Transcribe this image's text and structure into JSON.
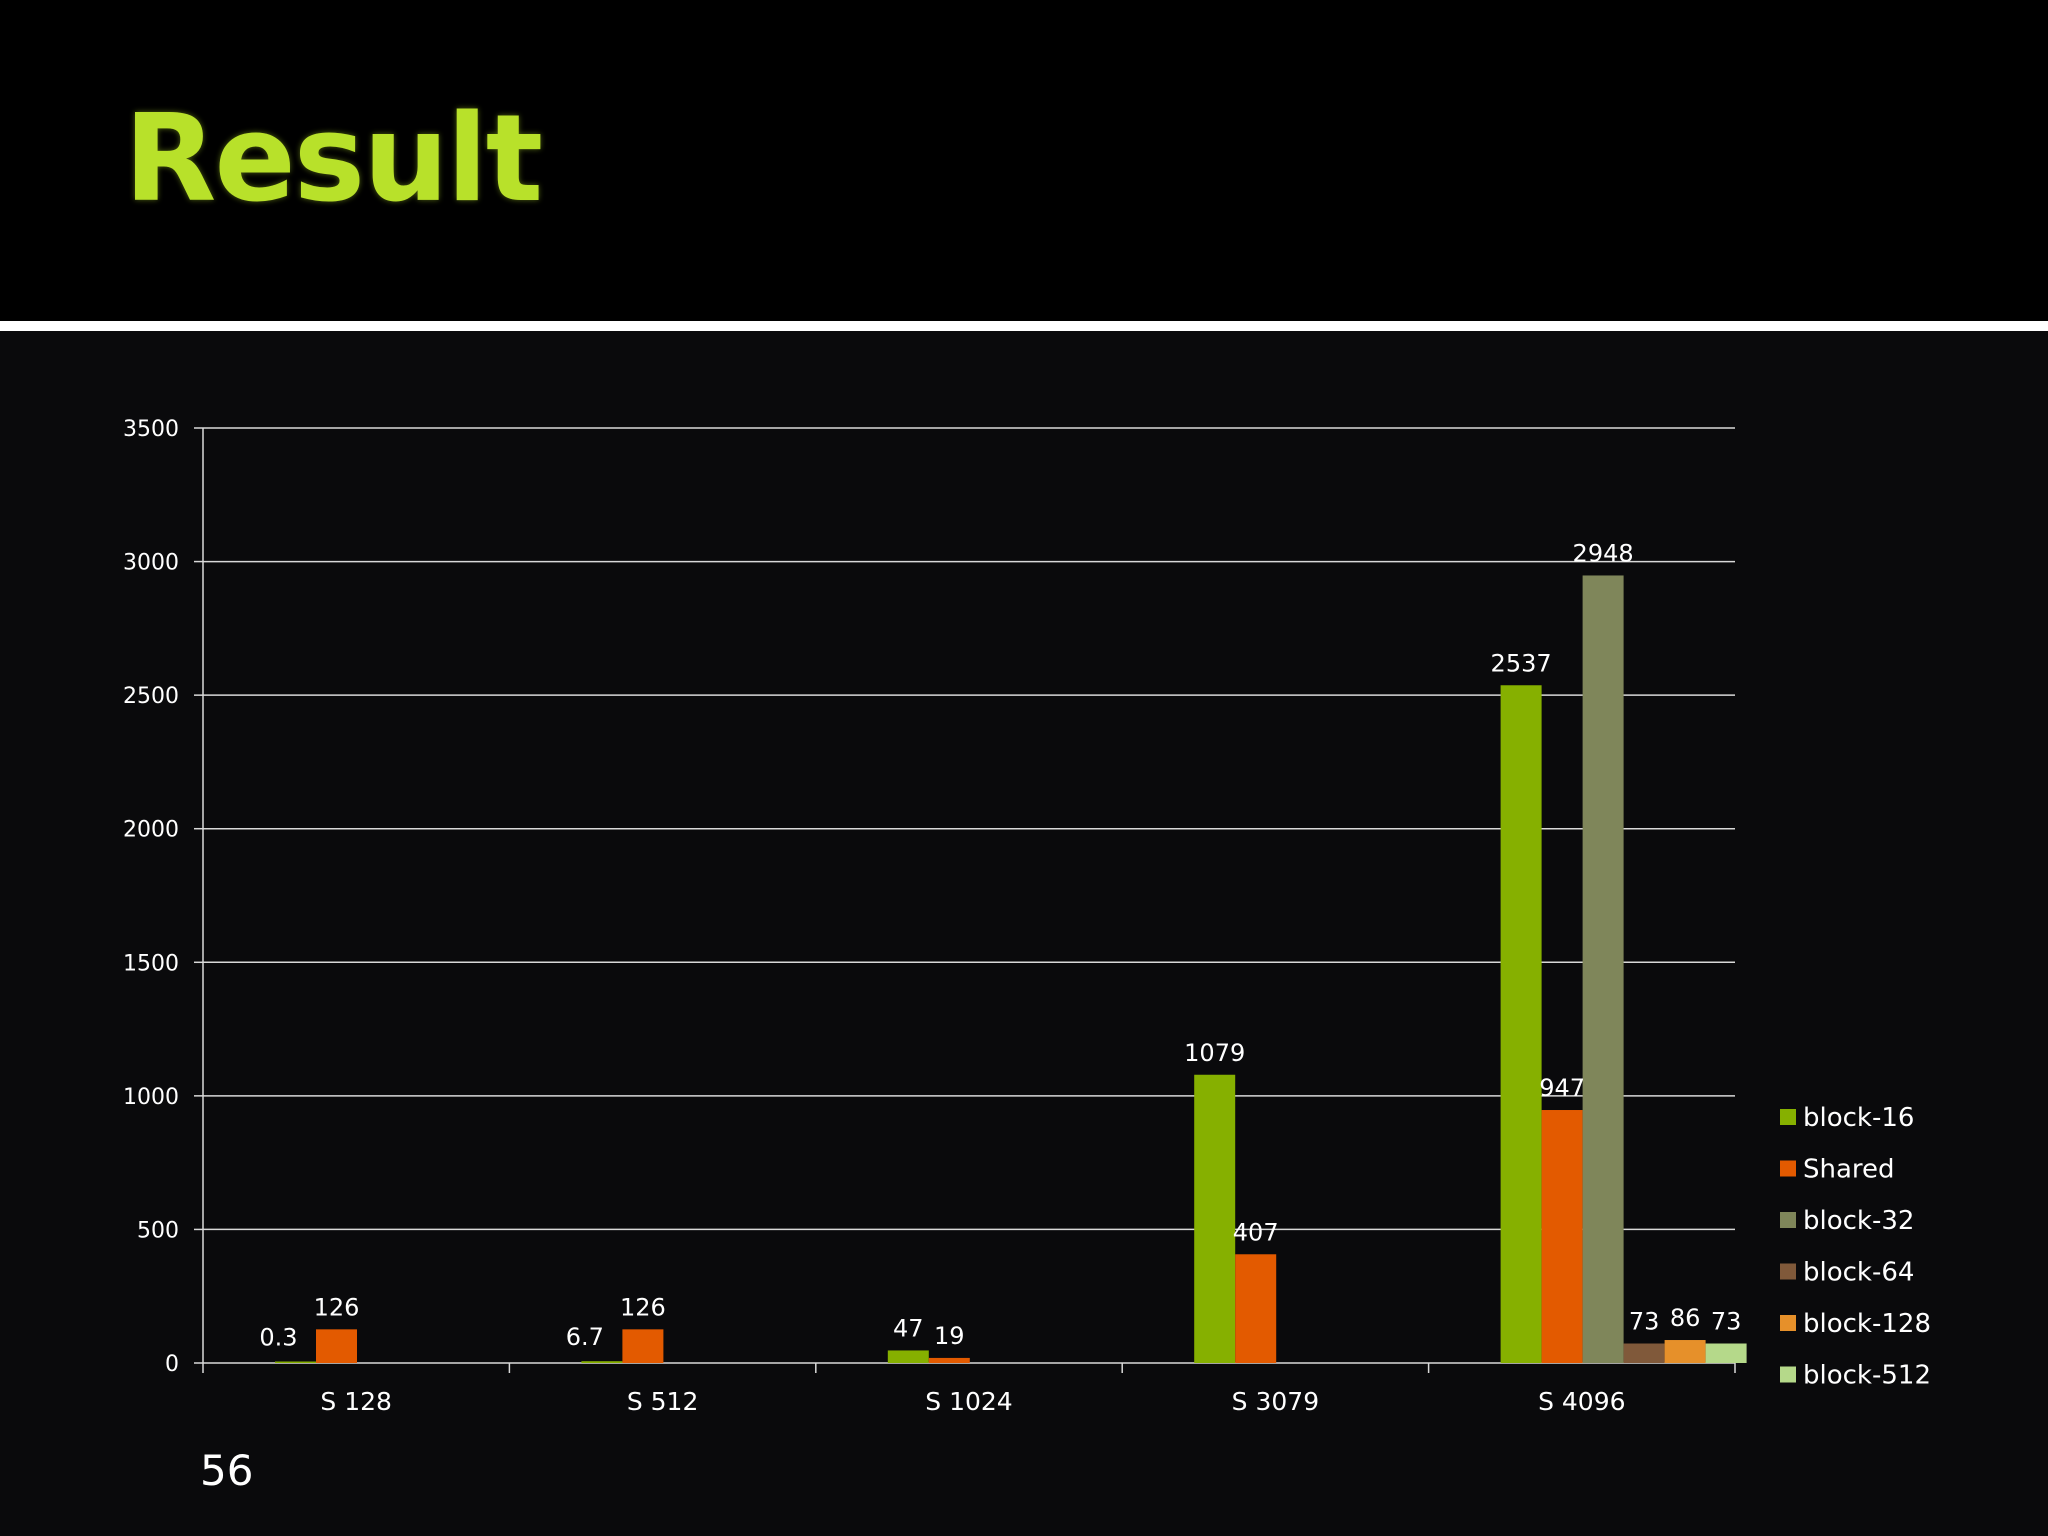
{
  "slide": {
    "title": "Result",
    "page_number": "56"
  },
  "colors": {
    "background": "#0a0a0c",
    "header": "#000000",
    "title": "#b8e12a",
    "divider": "#ffffff",
    "gridline": "#d9d9d9",
    "text": "#ffffff"
  },
  "chart_data": {
    "type": "bar",
    "categories": [
      "S 128",
      "S 512",
      "S 1024",
      "S 3079",
      "S 4096"
    ],
    "series": [
      {
        "name": "block-16",
        "color": "#86b000",
        "values": [
          0.3,
          6.7,
          47,
          1079,
          2537
        ]
      },
      {
        "name": "Shared",
        "color": "#e35a00",
        "values": [
          126,
          126,
          19,
          407,
          947
        ]
      },
      {
        "name": "block-32",
        "color": "#7f865a",
        "values": [
          null,
          null,
          null,
          null,
          2948
        ]
      },
      {
        "name": "block-64",
        "color": "#80593a",
        "values": [
          null,
          null,
          null,
          null,
          73
        ]
      },
      {
        "name": "block-128",
        "color": "#e6902a",
        "values": [
          null,
          null,
          null,
          null,
          86
        ]
      },
      {
        "name": "block-512",
        "color": "#b5d98a",
        "values": [
          null,
          null,
          null,
          null,
          73
        ]
      }
    ],
    "data_labels": [
      {
        "series": 0,
        "category": 0,
        "text": "0.3"
      },
      {
        "series": 1,
        "category": 0,
        "text": "126"
      },
      {
        "series": 0,
        "category": 1,
        "text": "6.7"
      },
      {
        "series": 1,
        "category": 1,
        "text": "126"
      },
      {
        "series": 0,
        "category": 2,
        "text": "47"
      },
      {
        "series": 1,
        "category": 2,
        "text": "19"
      },
      {
        "series": 0,
        "category": 3,
        "text": "1079"
      },
      {
        "series": 1,
        "category": 3,
        "text": "407"
      },
      {
        "series": 0,
        "category": 4,
        "text": "2537"
      },
      {
        "series": 1,
        "category": 4,
        "text": "947"
      },
      {
        "series": 2,
        "category": 4,
        "text": "2948"
      },
      {
        "series": 3,
        "category": 4,
        "text": "73"
      },
      {
        "series": 4,
        "category": 4,
        "text": "86"
      },
      {
        "series": 5,
        "category": 4,
        "text": "73"
      }
    ],
    "y_ticks": [
      "0",
      "500",
      "1000",
      "1500",
      "2000",
      "2500",
      "3000",
      "3500"
    ],
    "ylim": [
      0,
      3500
    ],
    "title": "",
    "xlabel": "",
    "ylabel": "",
    "grid": true,
    "legend_position": "right"
  }
}
